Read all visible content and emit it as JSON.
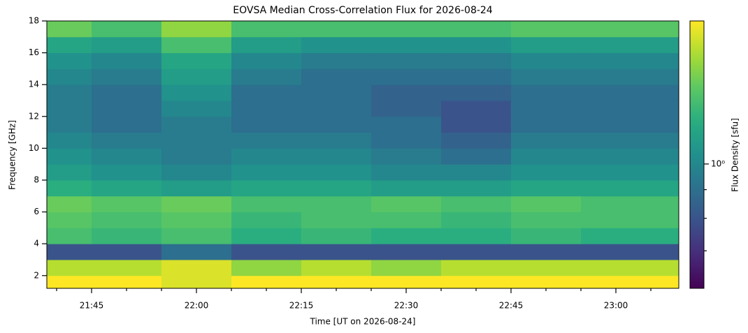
{
  "chart_data": {
    "type": "heatmap",
    "title": "EOVSA Median Cross-Correlation Flux for 2026-08-24",
    "x_label": "Time [UT on 2026-08-24]",
    "y_label": "Frequency [GHz]",
    "colorbar_label": "Flux Density [sfu]",
    "colormap": "viridis",
    "color_scale": "log",
    "xlim": [
      1298.6,
      1389
    ],
    "xticks": [
      {
        "value": 1305,
        "label": "21:45"
      },
      {
        "value": 1320,
        "label": "22:00"
      },
      {
        "value": 1335,
        "label": "22:15"
      },
      {
        "value": 1350,
        "label": "22:30"
      },
      {
        "value": 1365,
        "label": "22:45"
      },
      {
        "value": 1380,
        "label": "23:00"
      }
    ],
    "xminor_ticks": [
      1300,
      1310,
      1315,
      1325,
      1330,
      1340,
      1345,
      1355,
      1360,
      1370,
      1375,
      1385
    ],
    "ylim": [
      1.2,
      18
    ],
    "yticks": [
      2,
      4,
      6,
      8,
      10,
      12,
      14,
      16,
      18
    ],
    "zlim": [
      0.6,
      1.8
    ],
    "zticks": [
      {
        "value": 1,
        "label": "10⁰"
      }
    ],
    "zminor_ticks": [
      0.9,
      0.8,
      0.7
    ],
    "x_edges": [
      1298.6,
      1305,
      1315,
      1325,
      1335,
      1345,
      1355,
      1365,
      1375,
      1389
    ],
    "y_edges": [
      1.2,
      2,
      3,
      4,
      5,
      6,
      7,
      8,
      9,
      10,
      11,
      12,
      13,
      14,
      15,
      16,
      17,
      18
    ],
    "z": [
      [
        1.8,
        1.8,
        1.7,
        1.8,
        1.8,
        1.8,
        1.8,
        1.8,
        1.8
      ],
      [
        1.6,
        1.6,
        1.7,
        1.5,
        1.6,
        1.5,
        1.6,
        1.6,
        1.6
      ],
      [
        0.8,
        0.8,
        0.9,
        0.8,
        0.8,
        0.8,
        0.8,
        0.8,
        0.8
      ],
      [
        1.3,
        1.25,
        1.3,
        1.2,
        1.25,
        1.2,
        1.2,
        1.25,
        1.2
      ],
      [
        1.35,
        1.3,
        1.35,
        1.25,
        1.3,
        1.3,
        1.25,
        1.3,
        1.3
      ],
      [
        1.4,
        1.35,
        1.4,
        1.3,
        1.3,
        1.35,
        1.3,
        1.35,
        1.3
      ],
      [
        1.2,
        1.15,
        1.1,
        1.15,
        1.15,
        1.1,
        1.1,
        1.15,
        1.15
      ],
      [
        1.1,
        1.05,
        1.0,
        1.05,
        1.05,
        1.0,
        1.0,
        1.05,
        1.05
      ],
      [
        1.05,
        1.0,
        0.95,
        1.0,
        1.0,
        0.95,
        0.9,
        1.0,
        1.0
      ],
      [
        1.0,
        0.95,
        0.95,
        0.95,
        0.95,
        0.9,
        0.85,
        0.95,
        0.95
      ],
      [
        0.95,
        0.9,
        0.95,
        0.9,
        0.9,
        0.9,
        0.8,
        0.9,
        0.9
      ],
      [
        0.95,
        0.9,
        1.0,
        0.9,
        0.9,
        0.85,
        0.8,
        0.9,
        0.9
      ],
      [
        0.95,
        0.9,
        1.05,
        0.9,
        0.9,
        0.85,
        0.85,
        0.9,
        0.9
      ],
      [
        1.0,
        0.95,
        1.1,
        0.95,
        0.9,
        0.9,
        0.9,
        0.95,
        0.95
      ],
      [
        1.05,
        1.0,
        1.15,
        1.0,
        0.95,
        0.95,
        0.95,
        1.0,
        1.0
      ],
      [
        1.15,
        1.1,
        1.3,
        1.1,
        1.05,
        1.05,
        1.05,
        1.1,
        1.1
      ],
      [
        1.4,
        1.3,
        1.5,
        1.3,
        1.3,
        1.3,
        1.3,
        1.35,
        1.35
      ]
    ]
  }
}
